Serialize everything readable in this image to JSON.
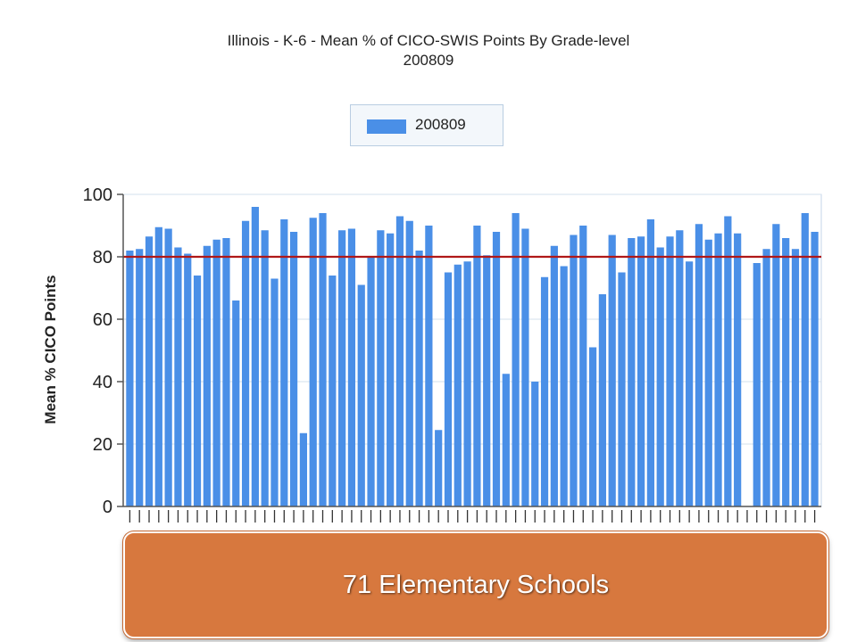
{
  "chart_data": {
    "type": "bar",
    "title": "Illinois - K-6 - Mean % of CICO-SWIS Points By Grade-level",
    "subtitle": "200809",
    "ylabel": "Mean % CICO Points",
    "xlabel": "",
    "ylim": [
      0,
      100
    ],
    "yticks": [
      0,
      20,
      40,
      60,
      80,
      100
    ],
    "grid": true,
    "legend": "top-center",
    "reference_line": {
      "value": 80,
      "color": "#b01818"
    },
    "series": [
      {
        "name": "200809",
        "color": "#4a8fe7",
        "values": [
          82,
          82.5,
          86.5,
          89.5,
          89,
          83,
          81,
          74,
          83.5,
          85.5,
          86,
          66,
          91.5,
          96,
          88.5,
          73,
          92,
          88,
          23.5,
          92.5,
          94,
          74,
          88.5,
          89,
          71,
          80,
          88.5,
          87.5,
          93,
          91.5,
          82,
          90,
          24.5,
          75,
          77.5,
          78.5,
          90,
          80.5,
          88,
          42.5,
          94,
          89,
          40,
          73.5,
          83.5,
          77,
          87,
          90,
          51,
          68,
          87,
          75,
          86,
          86.5,
          92,
          83,
          86.5,
          88.5,
          78.5,
          90.5,
          85.5,
          87.5,
          93,
          87.5,
          null,
          78,
          82.5,
          90.5,
          86,
          82.5,
          94,
          88
        ]
      }
    ]
  },
  "callout": {
    "text": "71 Elementary Schools"
  }
}
